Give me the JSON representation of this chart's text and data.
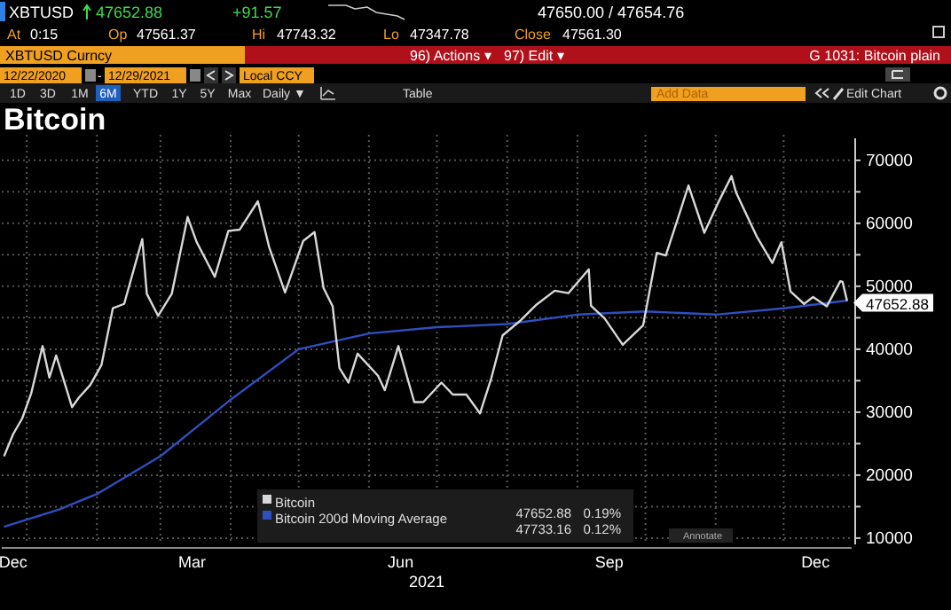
{
  "chart_data": {
    "type": "line",
    "title": "Bitcoin",
    "xlabel": "2021",
    "xlim": [
      "2020-12-21",
      "2021-12-31"
    ],
    "xticks": [
      {
        "value": "2020-12-26",
        "label": "Dec"
      },
      {
        "value": "2021-01-01",
        "label": null
      },
      {
        "value": "2021-02-01",
        "label": null
      },
      {
        "value": "2021-03-01",
        "label": null
      },
      {
        "value": "2021-03-15",
        "label": "Mar"
      },
      {
        "value": "2021-04-01",
        "label": null
      },
      {
        "value": "2021-05-01",
        "label": null
      },
      {
        "value": "2021-06-01",
        "label": null
      },
      {
        "value": "2021-06-15",
        "label": "Jun"
      },
      {
        "value": "2021-07-01",
        "label": null
      },
      {
        "value": "2021-08-01",
        "label": null
      },
      {
        "value": "2021-09-01",
        "label": null
      },
      {
        "value": "2021-09-15",
        "label": "Sep"
      },
      {
        "value": "2021-10-01",
        "label": null
      },
      {
        "value": "2021-11-01",
        "label": null
      },
      {
        "value": "2021-12-01",
        "label": null
      },
      {
        "value": "2021-12-15",
        "label": "Dec"
      }
    ],
    "ylim": [
      9000,
      73500
    ],
    "yticks": [
      10000,
      {
        "value": 15000,
        "label": null
      },
      20000,
      {
        "value": 25000,
        "label": null
      },
      30000,
      {
        "value": 35000,
        "label": null
      },
      40000,
      {
        "value": 45000,
        "label": null
      },
      50000,
      {
        "value": 55000,
        "label": null
      },
      60000,
      {
        "value": 65000,
        "label": null
      },
      70000
    ],
    "grid": true,
    "legend": "bottom",
    "series": [
      {
        "name": "Bitcoin",
        "color": "#d8d8d8",
        "x": [
          "2020-12-22",
          "2020-12-26",
          "2020-12-30",
          "2021-01-03",
          "2021-01-08",
          "2021-01-11",
          "2021-01-14",
          "2021-01-21",
          "2021-01-24",
          "2021-01-29",
          "2021-02-03",
          "2021-02-08",
          "2021-02-13",
          "2021-02-21",
          "2021-02-23",
          "2021-02-28",
          "2021-03-06",
          "2021-03-13",
          "2021-03-17",
          "2021-03-25",
          "2021-03-31",
          "2021-04-05",
          "2021-04-13",
          "2021-04-18",
          "2021-04-25",
          "2021-05-03",
          "2021-05-08",
          "2021-05-12",
          "2021-05-16",
          "2021-05-19",
          "2021-05-23",
          "2021-05-27",
          "2021-06-05",
          "2021-06-08",
          "2021-06-14",
          "2021-06-21",
          "2021-06-25",
          "2021-07-03",
          "2021-07-08",
          "2021-07-14",
          "2021-07-20",
          "2021-07-25",
          "2021-07-30",
          "2021-08-07",
          "2021-08-14",
          "2021-08-22",
          "2021-08-28",
          "2021-09-06",
          "2021-09-07",
          "2021-09-13",
          "2021-09-21",
          "2021-09-30",
          "2021-10-06",
          "2021-10-10",
          "2021-10-16",
          "2021-10-20",
          "2021-10-27",
          "2021-11-02",
          "2021-11-08",
          "2021-11-10",
          "2021-11-16",
          "2021-11-19",
          "2021-11-26",
          "2021-11-30",
          "2021-12-04",
          "2021-12-10",
          "2021-12-14",
          "2021-12-20",
          "2021-12-26",
          "2021-12-27",
          "2021-12-29"
        ],
        "values": [
          23000,
          26500,
          29000,
          33000,
          40500,
          35500,
          39000,
          30800,
          32300,
          34300,
          37500,
          46500,
          47200,
          57500,
          48800,
          45300,
          48800,
          61000,
          57000,
          51500,
          58800,
          59000,
          63500,
          56200,
          49000,
          57200,
          58600,
          49700,
          46800,
          37000,
          34700,
          39300,
          35800,
          33500,
          40500,
          31600,
          31600,
          34700,
          32800,
          32800,
          29800,
          35400,
          42200,
          44600,
          47100,
          49300,
          48900,
          52700,
          46900,
          44900,
          40700,
          43800,
          55300,
          54900,
          61500,
          66000,
          58500,
          63200,
          67500,
          64900,
          60300,
          58000,
          53700,
          57000,
          49200,
          47200,
          48300,
          46800,
          50800,
          50700,
          47650
        ]
      },
      {
        "name": "Bitcoin 200d Moving Average",
        "color": "#2f4fc0",
        "x": [
          "2020-12-22",
          "2021-01-15",
          "2021-02-01",
          "2021-03-01",
          "2021-04-01",
          "2021-05-01",
          "2021-06-01",
          "2021-07-01",
          "2021-08-01",
          "2021-09-01",
          "2021-10-01",
          "2021-11-01",
          "2021-12-01",
          "2021-12-29"
        ],
        "values": [
          11800,
          14500,
          17000,
          23000,
          32000,
          40000,
          42500,
          43500,
          44000,
          45500,
          46000,
          45500,
          46500,
          47730
        ]
      }
    ],
    "annotations": [
      "XBTUSD",
      "47652.88",
      "+91.57",
      "47650.00 / 47654.76",
      "At",
      "0:15",
      "Op",
      "47561.37",
      "Hi",
      "47743.32",
      "Lo",
      "47347.78",
      "Close",
      "47561.30",
      "XBTUSD Curncy",
      "96) Actions ▾",
      "97) Edit ▾",
      "G 1031: Bitcoin plain",
      "12/22/2020",
      "-",
      "12/29/2021",
      "Local CCY",
      "1D",
      "3D",
      "1M",
      "6M",
      "YTD",
      "1Y",
      "5Y",
      "Max",
      "Daily ▼",
      "Table",
      "Add Data",
      "Edit Chart",
      "47652.88",
      "0.19%",
      "47733.16",
      "0.12%",
      "Annotate",
      {
        "text": "47652.88",
        "x": "2021-12-29",
        "y": 47652.88
      }
    ]
  }
}
